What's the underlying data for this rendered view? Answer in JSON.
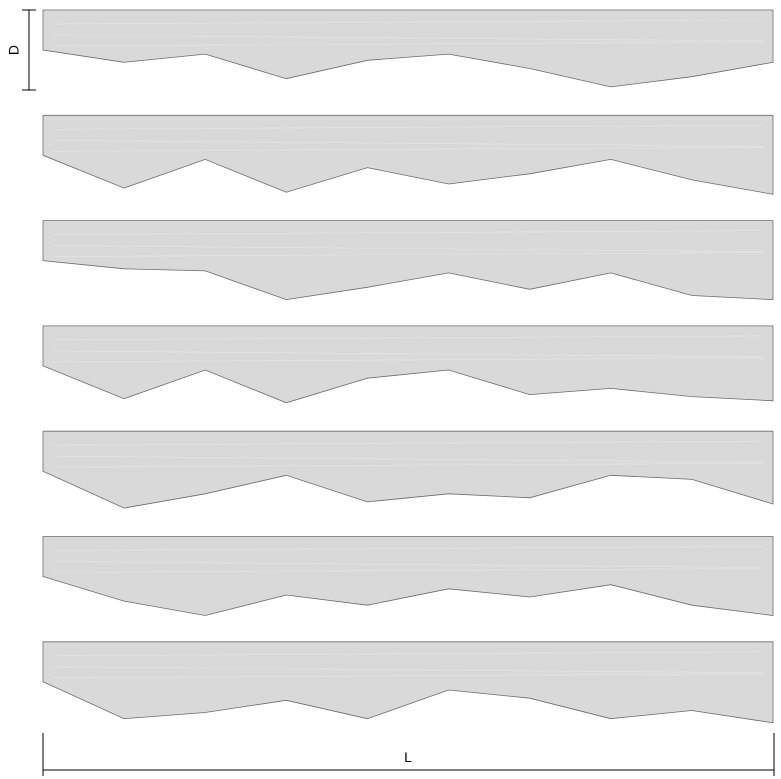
{
  "dimensions": {
    "depth_label": "D",
    "length_label": "L"
  },
  "strips": [
    {
      "profile": [
        0,
        0.3,
        0.1,
        0.7,
        0.25,
        0.1,
        0.45,
        0.9,
        0.65,
        0.3
      ]
    },
    {
      "profile": [
        0,
        0.8,
        0.1,
        0.9,
        0.3,
        0.7,
        0.45,
        0.1,
        0.6,
        0.95
      ]
    },
    {
      "profile": [
        0,
        0.2,
        0.25,
        0.95,
        0.65,
        0.3,
        0.7,
        0.3,
        0.85,
        0.95
      ]
    },
    {
      "profile": [
        0,
        0.8,
        0.1,
        0.9,
        0.3,
        0.1,
        0.7,
        0.55,
        0.75,
        0.85
      ]
    },
    {
      "profile": [
        0,
        0.9,
        0.55,
        0.1,
        0.75,
        0.55,
        0.65,
        0.1,
        0.2,
        0.8
      ]
    },
    {
      "profile": [
        0,
        0.6,
        0.95,
        0.45,
        0.7,
        0.3,
        0.5,
        0.2,
        0.7,
        0.95
      ]
    },
    {
      "profile": [
        0,
        0.9,
        0.75,
        0.45,
        0.9,
        0.2,
        0.4,
        0.9,
        0.7,
        1.0
      ]
    }
  ]
}
